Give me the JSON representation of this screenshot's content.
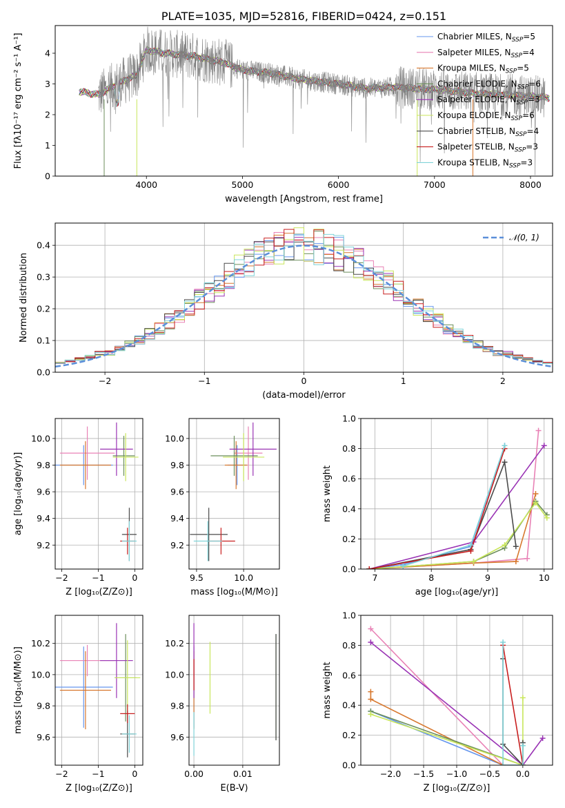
{
  "colors": {
    "Chabrier MILES": "#6495ed",
    "Salpeter MILES": "#e881b5",
    "Kroupa MILES": "#d7772d",
    "Chabrier ELODIE": "#6b8e5a",
    "Salpeter ELODIE": "#9932b4",
    "Kroupa ELODIE": "#c8e65a",
    "Chabrier STELIB": "#4a4a4a",
    "Salpeter STELIB": "#c81e1e",
    "Kroupa STELIB": "#7fd3d8"
  },
  "chart_data": [
    {
      "id": "spectrum",
      "type": "line",
      "title": "PLATE=1035, MJD=52816, FIBERID=0424, z=0.151",
      "xlabel": "wavelength [Angstrom, rest frame]",
      "ylabel": "Flux [fλ10⁻¹⁷ erg cm⁻² s⁻¹ A⁻¹]",
      "xlim": [
        3050,
        8230
      ],
      "ylim": [
        0,
        4.9
      ],
      "xticks": [
        4000,
        5000,
        6000,
        7000,
        8000
      ],
      "yticks": [
        0,
        1,
        2,
        3,
        4
      ],
      "grid": false,
      "legend_position": "right",
      "data_color": "#808080",
      "continuum": {
        "x": [
          3300,
          3500,
          3700,
          3900,
          4000,
          4200,
          4500,
          4800,
          5000,
          5300,
          5600,
          6000,
          6300,
          6600,
          6800,
          7100,
          7400,
          7700,
          8000,
          8200
        ],
        "y": [
          2.75,
          2.65,
          3.0,
          3.3,
          4.1,
          4.0,
          3.9,
          3.7,
          3.45,
          3.35,
          3.15,
          3.0,
          2.85,
          2.9,
          2.85,
          2.8,
          2.7,
          2.65,
          2.6,
          2.55
        ]
      },
      "legend": [
        "Chabrier MILES, N_SSP=5",
        "Salpeter MILES, N_SSP=4",
        "Kroupa MILES, N_SSP=5",
        "Chabrier ELODIE, N_SSP=6",
        "Salpeter ELODIE, N_SSP=3",
        "Kroupa ELODIE, N_SSP=6",
        "Chabrier STELIB, N_SSP=4",
        "Salpeter STELIB, N_SSP=3",
        "Kroupa STELIB, N_SSP=3"
      ]
    },
    {
      "id": "residuals",
      "type": "line",
      "xlabel": "(data-model)/error",
      "ylabel": "Normed distribution",
      "xlim": [
        -2.5,
        2.5
      ],
      "ylim": [
        0,
        0.47
      ],
      "xticks": [
        -2,
        -1,
        0,
        1,
        2
      ],
      "yticks": [
        0.0,
        0.1,
        0.2,
        0.3,
        0.4
      ],
      "grid": true,
      "legend_position": "top-right",
      "gaussian_label": "𝒩(0, 1)",
      "gaussian_color": "#5b8fd9",
      "bin_width": 0.1,
      "bin_start": -2.5
    },
    {
      "id": "age-Z",
      "type": "scatter",
      "xlabel": "Z [log₁₀(Z/Z⊙)]",
      "ylabel": "age  [log₁₀(age/yr)]",
      "xlim": [
        -2.18,
        0.22
      ],
      "ylim": [
        9.02,
        10.15
      ],
      "xticks": [
        -2,
        -1,
        0
      ],
      "yticks": [
        9.2,
        9.4,
        9.6,
        9.8,
        10.0
      ],
      "grid": true,
      "points": [
        {
          "model": "Chabrier MILES",
          "x": -1.4,
          "xerr": 0.8,
          "y": 9.8,
          "yerr": 0.15
        },
        {
          "model": "Salpeter MILES",
          "x": -1.3,
          "xerr": 0.75,
          "y": 9.89,
          "yerr": 0.2
        },
        {
          "model": "Kroupa MILES",
          "x": -1.35,
          "xerr": 0.7,
          "y": 9.8,
          "yerr": 0.18
        },
        {
          "model": "Chabrier ELODIE",
          "x": -0.3,
          "xerr": 0.3,
          "y": 9.87,
          "yerr": 0.15
        },
        {
          "model": "Salpeter ELODIE",
          "x": -0.5,
          "xerr": 0.45,
          "y": 9.92,
          "yerr": 0.2
        },
        {
          "model": "Kroupa ELODIE",
          "x": -0.25,
          "xerr": 0.35,
          "y": 9.86,
          "yerr": 0.18
        },
        {
          "model": "Chabrier STELIB",
          "x": -0.15,
          "xerr": 0.2,
          "y": 9.28,
          "yerr": 0.2
        },
        {
          "model": "Salpeter STELIB",
          "x": -0.2,
          "xerr": 0.2,
          "y": 9.23,
          "yerr": 0.1
        },
        {
          "model": "Kroupa STELIB",
          "x": -0.15,
          "xerr": 0.2,
          "y": 9.23,
          "yerr": 0.15
        }
      ]
    },
    {
      "id": "age-mass",
      "type": "scatter",
      "xlabel": "mass [log₁₀(M/M⊙)]",
      "ylabel": "",
      "xlim": [
        9.42,
        10.38
      ],
      "ylim": [
        9.02,
        10.15
      ],
      "xticks": [
        9.5,
        10.0
      ],
      "yticks": [
        9.2,
        9.4,
        9.6,
        9.8,
        10.0
      ],
      "grid": true,
      "points": [
        {
          "model": "Chabrier MILES",
          "x": 9.93,
          "xerr": 0.1,
          "y": 9.8,
          "yerr": 0.15
        },
        {
          "model": "Salpeter MILES",
          "x": 10.05,
          "xerr": 0.15,
          "y": 9.89,
          "yerr": 0.2
        },
        {
          "model": "Kroupa MILES",
          "x": 9.92,
          "xerr": 0.12,
          "y": 9.8,
          "yerr": 0.18
        },
        {
          "model": "Chabrier ELODIE",
          "x": 9.9,
          "xerr": 0.25,
          "y": 9.87,
          "yerr": 0.15
        },
        {
          "model": "Salpeter ELODIE",
          "x": 10.1,
          "xerr": 0.25,
          "y": 9.92,
          "yerr": 0.2
        },
        {
          "model": "Kroupa ELODIE",
          "x": 10.0,
          "xerr": 0.22,
          "y": 9.86,
          "yerr": 0.18
        },
        {
          "model": "Chabrier STELIB",
          "x": 9.63,
          "xerr": 0.2,
          "y": 9.28,
          "yerr": 0.2
        },
        {
          "model": "Salpeter STELIB",
          "x": 9.76,
          "xerr": 0.15,
          "y": 9.23,
          "yerr": 0.1
        },
        {
          "model": "Kroupa STELIB",
          "x": 9.62,
          "xerr": 0.15,
          "y": 9.23,
          "yerr": 0.15
        }
      ]
    },
    {
      "id": "weight-age",
      "type": "line",
      "xlabel": "age  [log₁₀(age/yr)]",
      "ylabel": "mass weight",
      "xlim": [
        6.75,
        10.15
      ],
      "ylim": [
        0.0,
        1.0
      ],
      "xticks": [
        7,
        8,
        9,
        10
      ],
      "yticks": [
        0.0,
        0.2,
        0.4,
        0.6,
        0.8,
        1.0
      ],
      "grid": true,
      "series": [
        {
          "model": "Chabrier MILES",
          "x": [
            6.9,
            7.5,
            8.7,
            9.3
          ],
          "y": [
            0.0,
            0.03,
            0.15,
            0.82
          ]
        },
        {
          "model": "Salpeter MILES",
          "x": [
            6.9,
            8.75,
            9.7,
            9.9
          ],
          "y": [
            0.0,
            0.04,
            0.07,
            0.92
          ]
        },
        {
          "model": "Kroupa MILES",
          "x": [
            6.9,
            8.75,
            9.5,
            9.85
          ],
          "y": [
            0.0,
            0.04,
            0.05,
            0.5
          ]
        },
        {
          "model": "Chabrier ELODIE",
          "x": [
            6.9,
            8.75,
            9.3,
            9.85,
            10.05
          ],
          "y": [
            0.0,
            0.05,
            0.14,
            0.45,
            0.36
          ]
        },
        {
          "model": "Salpeter ELODIE",
          "x": [
            6.9,
            8.75,
            10.0
          ],
          "y": [
            0.0,
            0.18,
            0.82
          ]
        },
        {
          "model": "Kroupa ELODIE",
          "x": [
            6.9,
            8.75,
            9.3,
            9.85,
            10.05
          ],
          "y": [
            0.0,
            0.05,
            0.16,
            0.44,
            0.34
          ]
        },
        {
          "model": "Chabrier STELIB",
          "x": [
            6.9,
            8.7,
            9.3,
            9.5
          ],
          "y": [
            0.0,
            0.13,
            0.71,
            0.15
          ]
        },
        {
          "model": "Salpeter STELIB",
          "x": [
            6.9,
            8.7,
            9.3
          ],
          "y": [
            0.0,
            0.12,
            0.8
          ]
        },
        {
          "model": "Kroupa STELIB",
          "x": [
            7.5,
            8.7,
            9.3
          ],
          "y": [
            0.02,
            0.16,
            0.82
          ]
        }
      ]
    },
    {
      "id": "mass-Z",
      "type": "scatter",
      "xlabel": "Z [log₁₀(Z/Z⊙)]",
      "ylabel": "mass [log₁₀(M/M⊙)]",
      "xlim": [
        -2.18,
        0.22
      ],
      "ylim": [
        9.42,
        10.38
      ],
      "xticks": [
        -2,
        -1,
        0
      ],
      "yticks": [
        9.6,
        9.8,
        10.0,
        10.2
      ],
      "grid": true,
      "points": [
        {
          "model": "Chabrier MILES",
          "x": -1.4,
          "xerr": 0.8,
          "y": 9.92,
          "yerr": 0.26
        },
        {
          "model": "Salpeter MILES",
          "x": -1.3,
          "xerr": 0.75,
          "y": 10.09,
          "yerr": 0.1
        },
        {
          "model": "Kroupa MILES",
          "x": -1.35,
          "xerr": 0.7,
          "y": 9.9,
          "yerr": 0.25
        },
        {
          "model": "Chabrier ELODIE",
          "x": -0.25,
          "xerr": 0.3,
          "y": 9.98,
          "yerr": 0.28
        },
        {
          "model": "Salpeter ELODIE",
          "x": -0.5,
          "xerr": 0.45,
          "y": 10.09,
          "yerr": 0.24
        },
        {
          "model": "Kroupa ELODIE",
          "x": -0.2,
          "xerr": 0.35,
          "y": 9.98,
          "yerr": 0.24
        },
        {
          "model": "Chabrier STELIB",
          "x": -0.2,
          "xerr": 0.2,
          "y": 9.62,
          "yerr": 0.15
        },
        {
          "model": "Salpeter STELIB",
          "x": -0.2,
          "xerr": 0.2,
          "y": 9.75,
          "yerr": 0.06
        },
        {
          "model": "Kroupa STELIB",
          "x": -0.15,
          "xerr": 0.2,
          "y": 9.62,
          "yerr": 0.12
        }
      ]
    },
    {
      "id": "mass-EBV",
      "type": "scatter",
      "xlabel": "E(B-V)",
      "ylabel": "",
      "xlim": [
        -0.001,
        0.0175
      ],
      "ylim": [
        9.42,
        10.38
      ],
      "xticks": [
        0.0,
        0.01
      ],
      "yticks": [
        9.6,
        9.8,
        10.0,
        10.2
      ],
      "grid": true,
      "points": [
        {
          "model": "Chabrier MILES",
          "x": 0.0,
          "y": 9.92,
          "yerr": 0.26
        },
        {
          "model": "Salpeter MILES",
          "x": 0.0,
          "y": 10.09,
          "yerr": 0.1
        },
        {
          "model": "Kroupa MILES",
          "x": 0.0,
          "y": 9.9,
          "yerr": 0.25
        },
        {
          "model": "Chabrier ELODIE",
          "x": 0.0168,
          "y": 9.92,
          "yerr": 0.34
        },
        {
          "model": "Salpeter ELODIE",
          "x": 0.0,
          "y": 10.09,
          "yerr": 0.24
        },
        {
          "model": "Kroupa ELODIE",
          "x": 0.0033,
          "y": 9.98,
          "yerr": 0.23
        },
        {
          "model": "Chabrier STELIB",
          "x": 0.0168,
          "y": 9.92,
          "yerr": 0.34
        },
        {
          "model": "Salpeter STELIB",
          "x": 0.0,
          "y": 10.0,
          "yerr": 0.1
        },
        {
          "model": "Kroupa STELIB",
          "x": 0.0,
          "y": 9.62,
          "yerr": 0.14
        }
      ]
    },
    {
      "id": "weight-Z",
      "type": "line",
      "xlabel": "Z [log₁₀(Z/Z⊙)]",
      "ylabel": "mass weight",
      "xlim": [
        -2.45,
        0.45
      ],
      "ylim": [
        0.0,
        1.0
      ],
      "xticks": [
        -2.0,
        -1.5,
        -1.0,
        -0.5,
        0.0
      ],
      "yticks": [
        0.0,
        0.2,
        0.4,
        0.6,
        0.8,
        1.0
      ],
      "grid": true,
      "series": [
        {
          "model": "Chabrier MILES",
          "x": [
            -2.3,
            -0.3,
            0.0
          ],
          "y": [
            0.36,
            0.0,
            0.0
          ]
        },
        {
          "model": "Salpeter MILES",
          "x": [
            -2.3,
            -0.3
          ],
          "y": [
            0.91,
            0.0
          ]
        },
        {
          "model": "Kroupa MILES",
          "x": [
            -2.3,
            -2.3,
            -0.3
          ],
          "y": [
            0.49,
            0.44,
            0.0
          ]
        },
        {
          "model": "Chabrier ELODIE",
          "x": [
            -2.3,
            0.0
          ],
          "y": [
            0.36,
            0.0
          ]
        },
        {
          "model": "Salpeter ELODIE",
          "x": [
            -2.3,
            0.0,
            0.3
          ],
          "y": [
            0.82,
            0.0,
            0.18
          ]
        },
        {
          "model": "Kroupa ELODIE",
          "x": [
            -2.3,
            0.0,
            0.0
          ],
          "y": [
            0.34,
            0.0,
            0.45
          ]
        },
        {
          "model": "Chabrier STELIB",
          "x": [
            -0.3,
            -0.3,
            0.0,
            0.0
          ],
          "y": [
            0.71,
            0.14,
            0.0,
            0.15
          ]
        },
        {
          "model": "Salpeter STELIB",
          "x": [
            -0.3,
            0.0
          ],
          "y": [
            0.8,
            0.0
          ]
        },
        {
          "model": "Kroupa STELIB",
          "x": [
            -0.3,
            -0.3,
            0.0,
            0.0
          ],
          "y": [
            0.82,
            0.0,
            0.0,
            0.13
          ]
        }
      ]
    }
  ]
}
